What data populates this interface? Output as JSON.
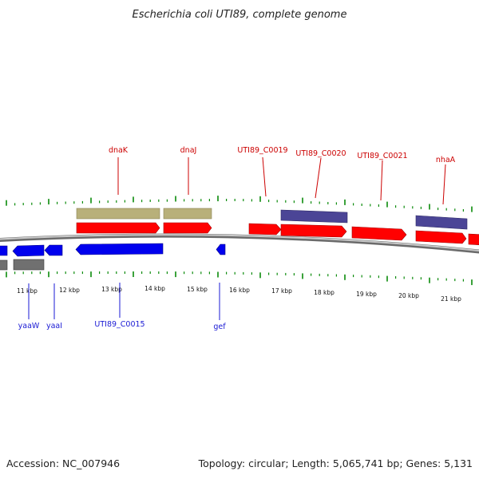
{
  "title": "Escherichia coli UTI89, complete genome",
  "footer": {
    "accession": "Accession: NC_007946",
    "summary": "Topology: circular; Length: 5,065,741 bp; Genes: 5,131"
  },
  "colors": {
    "plus_strand": "#ff0000",
    "minus_strand": "#0000ee",
    "rna_or_other": "#b8b07a",
    "operon": "#4b4596",
    "pseudo": "#707070",
    "backbone": "#8f8f8f",
    "tick": "#0a8a0a",
    "top_label": "#cc0000",
    "bottom_label": "#1a1ad4"
  },
  "scale": {
    "unit": "kbp",
    "labels": [
      "11 kbp",
      "12 kbp",
      "13 kbp",
      "14 kbp",
      "15 kbp",
      "16 kbp",
      "17 kbp",
      "18 kbp",
      "19 kbp",
      "20 kbp",
      "21 kbp"
    ]
  },
  "genes_top": [
    {
      "name": "dnaK"
    },
    {
      "name": "dnaJ"
    },
    {
      "name": "UTI89_C0019"
    },
    {
      "name": "UTI89_C0020"
    },
    {
      "name": "UTI89_C0021"
    },
    {
      "name": "nhaA"
    }
  ],
  "genes_bottom": [
    {
      "name": "yaaW"
    },
    {
      "name": "yaaI"
    },
    {
      "name": "UTI89_C0015"
    },
    {
      "name": "gef"
    }
  ]
}
